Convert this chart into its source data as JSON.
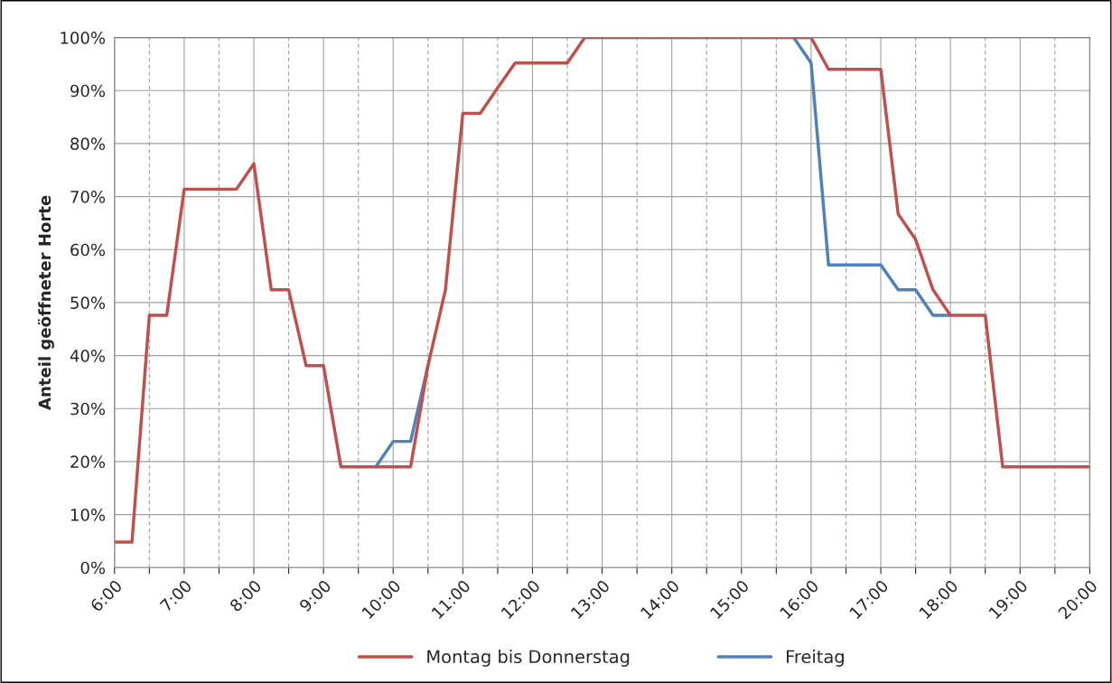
{
  "chart_data": {
    "type": "line",
    "ylabel": "Anteil geöffneter Horte",
    "x": [
      6,
      6.25,
      6.5,
      6.75,
      7,
      7.25,
      7.5,
      7.75,
      8,
      8.25,
      8.5,
      8.75,
      9,
      9.25,
      9.5,
      9.75,
      10,
      10.25,
      10.5,
      10.75,
      11,
      11.25,
      11.5,
      11.75,
      12,
      12.25,
      12.5,
      12.75,
      13,
      13.25,
      13.5,
      13.75,
      14,
      14.25,
      14.5,
      14.75,
      15,
      15.25,
      15.5,
      15.75,
      16,
      16.25,
      16.5,
      16.75,
      17,
      17.25,
      17.5,
      17.75,
      18,
      18.25,
      18.5,
      18.75,
      19,
      19.25,
      19.5,
      19.75,
      20
    ],
    "series": [
      {
        "name": "Freitag",
        "color": "#4f81bd",
        "values": [
          null,
          null,
          null,
          null,
          null,
          null,
          null,
          null,
          null,
          null,
          null,
          null,
          null,
          null,
          null,
          19,
          23.8,
          23.8,
          38.1,
          null,
          null,
          null,
          null,
          null,
          null,
          null,
          null,
          null,
          null,
          null,
          null,
          null,
          null,
          null,
          null,
          null,
          null,
          null,
          null,
          100,
          95.2,
          57.1,
          57.1,
          57.1,
          57.1,
          52.4,
          52.4,
          47.6,
          47.6,
          null,
          null,
          null,
          null,
          null,
          null,
          null,
          null
        ]
      },
      {
        "name": "Montag bis Donnerstag",
        "color": "#c0504d",
        "values": [
          4.8,
          4.8,
          47.6,
          47.6,
          71.4,
          71.4,
          71.4,
          71.4,
          76.2,
          52.4,
          52.4,
          38.1,
          38.1,
          19,
          19,
          19,
          19,
          19,
          38.1,
          52.4,
          85.7,
          85.7,
          90.5,
          95.2,
          95.2,
          95.2,
          95.2,
          100,
          100,
          100,
          100,
          100,
          100,
          100,
          100,
          100,
          100,
          100,
          100,
          100,
          100,
          94,
          94,
          94,
          94,
          66.7,
          61.9,
          52.4,
          47.6,
          47.6,
          47.6,
          19,
          19,
          19,
          19,
          19,
          19
        ]
      }
    ],
    "xlim": [
      6,
      20
    ],
    "xticks": [
      {
        "value": 6,
        "label": "6:00"
      },
      {
        "value": 6.5,
        "label": null
      },
      {
        "value": 7,
        "label": "7:00"
      },
      {
        "value": 7.5,
        "label": null
      },
      {
        "value": 8,
        "label": "8:00"
      },
      {
        "value": 8.5,
        "label": null
      },
      {
        "value": 9,
        "label": "9:00"
      },
      {
        "value": 9.5,
        "label": null
      },
      {
        "value": 10,
        "label": "10:00"
      },
      {
        "value": 10.5,
        "label": null
      },
      {
        "value": 11,
        "label": "11:00"
      },
      {
        "value": 11.5,
        "label": null
      },
      {
        "value": 12,
        "label": "12:00"
      },
      {
        "value": 12.5,
        "label": null
      },
      {
        "value": 13,
        "label": "13:00"
      },
      {
        "value": 13.5,
        "label": null
      },
      {
        "value": 14,
        "label": "14:00"
      },
      {
        "value": 14.5,
        "label": null
      },
      {
        "value": 15,
        "label": "15:00"
      },
      {
        "value": 15.5,
        "label": null
      },
      {
        "value": 16,
        "label": "16:00"
      },
      {
        "value": 16.5,
        "label": null
      },
      {
        "value": 17,
        "label": "17:00"
      },
      {
        "value": 17.5,
        "label": null
      },
      {
        "value": 18,
        "label": "18:00"
      },
      {
        "value": 18.5,
        "label": null
      },
      {
        "value": 19,
        "label": "19:00"
      },
      {
        "value": 19.5,
        "label": null
      },
      {
        "value": 20,
        "label": "20:00"
      }
    ],
    "ylim": [
      0,
      100
    ],
    "yticks": [
      {
        "value": 0,
        "label": "0%"
      },
      {
        "value": 10,
        "label": "10%"
      },
      {
        "value": 20,
        "label": "20%"
      },
      {
        "value": 30,
        "label": "30%"
      },
      {
        "value": 40,
        "label": "40%"
      },
      {
        "value": 50,
        "label": "50%"
      },
      {
        "value": 60,
        "label": "60%"
      },
      {
        "value": 70,
        "label": "70%"
      },
      {
        "value": 80,
        "label": "80%"
      },
      {
        "value": 90,
        "label": "90%"
      },
      {
        "value": 100,
        "label": "100%"
      }
    ],
    "grid": true,
    "legend": "bottom",
    "marker": "none",
    "line_style": "solid"
  }
}
